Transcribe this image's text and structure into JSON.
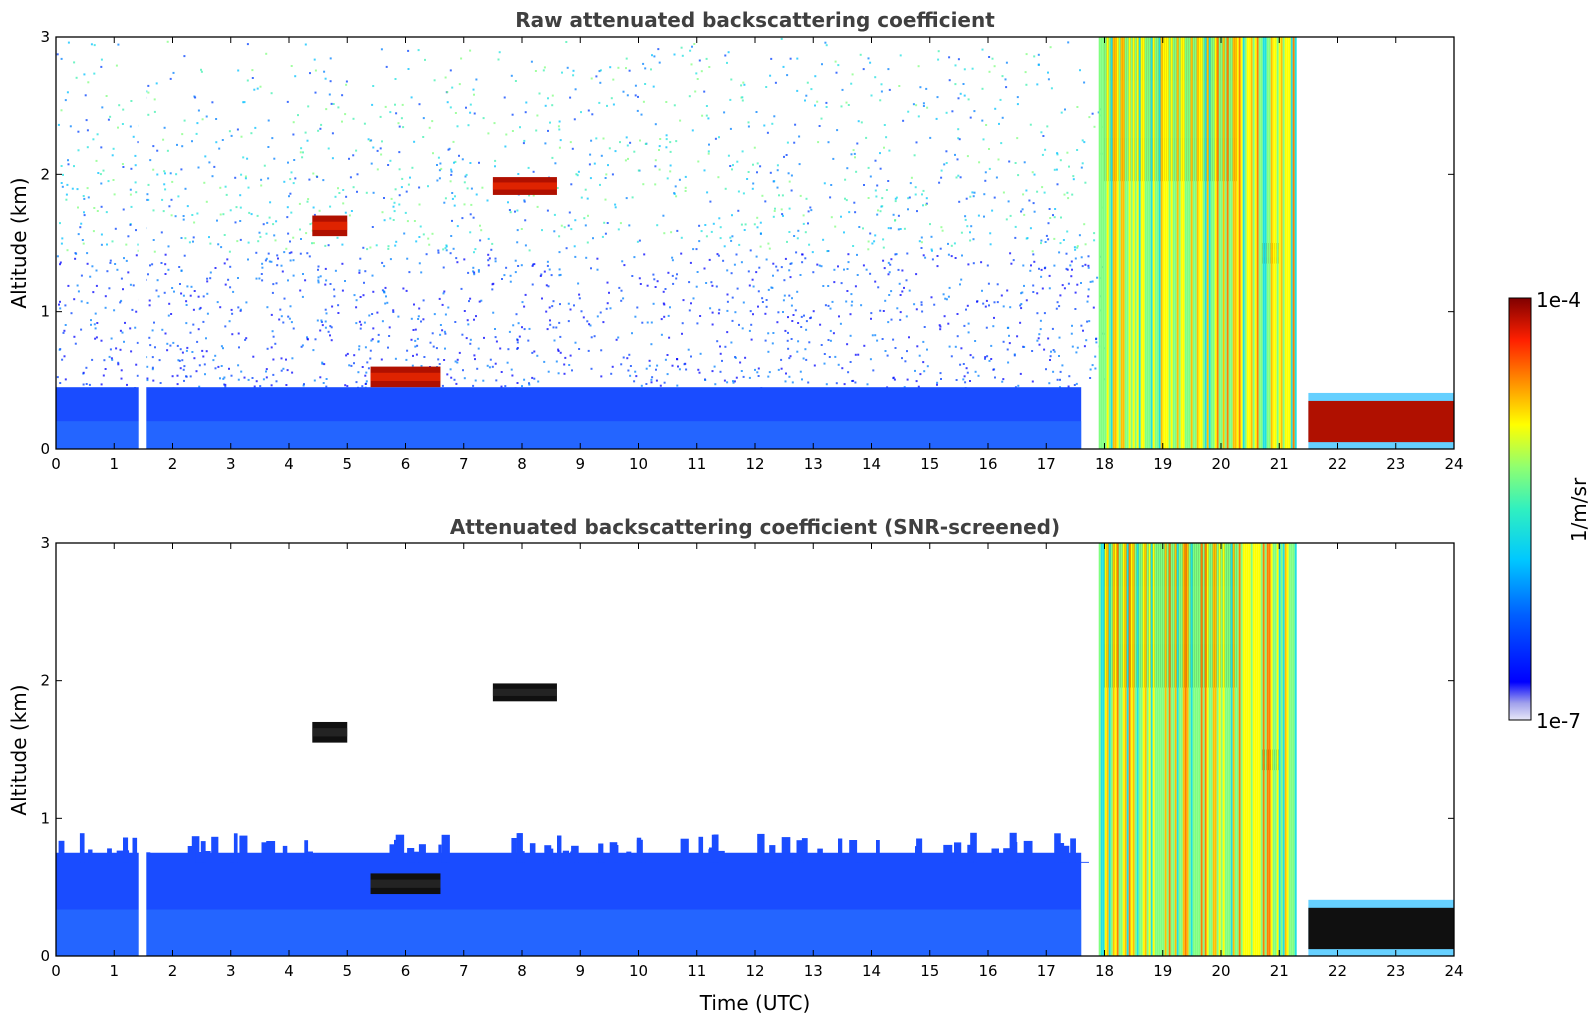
{
  "chart_data": [
    {
      "type": "heatmap",
      "title": "Raw attenuated backscattering coefficient",
      "xlabel": "",
      "ylabel": "Altitude (km)",
      "xlim": [
        0,
        24
      ],
      "ylim": [
        0,
        3
      ],
      "xticks": [
        0,
        1,
        2,
        3,
        4,
        5,
        6,
        7,
        8,
        9,
        10,
        11,
        12,
        13,
        14,
        15,
        16,
        17,
        18,
        19,
        20,
        21,
        22,
        23,
        24
      ],
      "yticks": [
        0,
        1,
        2,
        3
      ],
      "data_gaps": [
        [
          1.42,
          1.55
        ]
      ],
      "features": [
        {
          "kind": "noise_background",
          "x_range": [
            0,
            18
          ],
          "y_range": [
            0.4,
            3
          ]
        },
        {
          "kind": "boundary_layer",
          "x_range": [
            0,
            17.6
          ],
          "y_range": [
            0,
            0.45
          ]
        },
        {
          "kind": "cloud",
          "x_range": [
            4.4,
            5.0
          ],
          "y_range": [
            1.55,
            1.7
          ]
        },
        {
          "kind": "cloud",
          "x_range": [
            7.5,
            8.6
          ],
          "y_range": [
            1.85,
            1.98
          ]
        },
        {
          "kind": "cloud",
          "x_range": [
            5.4,
            6.6
          ],
          "y_range": [
            0.45,
            0.6
          ]
        },
        {
          "kind": "cloud",
          "x_range": [
            18.0,
            20.3
          ],
          "y_range": [
            1.95,
            3.0
          ]
        },
        {
          "kind": "cloud",
          "x_range": [
            20.7,
            21.0
          ],
          "y_range": [
            1.35,
            1.5
          ]
        },
        {
          "kind": "fog_layer",
          "x_range": [
            21.5,
            24
          ],
          "y_range": [
            0.05,
            0.35
          ]
        },
        {
          "kind": "rain",
          "x_range": [
            17.9,
            21.3
          ],
          "y_range": [
            0,
            3
          ]
        }
      ]
    },
    {
      "type": "heatmap",
      "title": "Attenuated backscattering coefficient (SNR-screened)",
      "xlabel": "Time (UTC)",
      "ylabel": "Altitude (km)",
      "xlim": [
        0,
        24
      ],
      "ylim": [
        0,
        3
      ],
      "xticks": [
        0,
        1,
        2,
        3,
        4,
        5,
        6,
        7,
        8,
        9,
        10,
        11,
        12,
        13,
        14,
        15,
        16,
        17,
        18,
        19,
        20,
        21,
        22,
        23,
        24
      ],
      "yticks": [
        0,
        1,
        2,
        3
      ],
      "data_gaps": [
        [
          1.42,
          1.55
        ]
      ],
      "features": [
        {
          "kind": "boundary_layer",
          "x_range": [
            0,
            17.6
          ],
          "y_range": [
            0,
            0.75
          ]
        },
        {
          "kind": "cloud",
          "x_range": [
            4.4,
            5.0
          ],
          "y_range": [
            1.55,
            1.7
          ]
        },
        {
          "kind": "cloud",
          "x_range": [
            7.5,
            8.6
          ],
          "y_range": [
            1.85,
            1.98
          ]
        },
        {
          "kind": "cloud",
          "x_range": [
            5.4,
            6.6
          ],
          "y_range": [
            0.45,
            0.6
          ]
        },
        {
          "kind": "cloud",
          "x_range": [
            18.0,
            20.3
          ],
          "y_range": [
            1.95,
            3.0
          ]
        },
        {
          "kind": "cloud",
          "x_range": [
            20.7,
            21.0
          ],
          "y_range": [
            1.35,
            1.5
          ]
        },
        {
          "kind": "fog_layer",
          "x_range": [
            21.5,
            24
          ],
          "y_range": [
            0.05,
            0.35
          ]
        },
        {
          "kind": "rain",
          "x_range": [
            17.9,
            21.3
          ],
          "y_range": [
            0,
            3
          ]
        }
      ]
    }
  ],
  "colorbar": {
    "top_label": "1e-4",
    "bottom_label": "1e-7",
    "units": "1/m/sr",
    "colors": [
      "#e8e8f8",
      "#c8c8f0",
      "#a0a0ec",
      "#7070f0",
      "#0000ff",
      "#0040ff",
      "#0080ff",
      "#00c0ff",
      "#20e0e0",
      "#40f0b0",
      "#80ff80",
      "#c0ff40",
      "#ffff00",
      "#ffc000",
      "#ff8000",
      "#ff3000",
      "#e00000",
      "#800000"
    ]
  }
}
